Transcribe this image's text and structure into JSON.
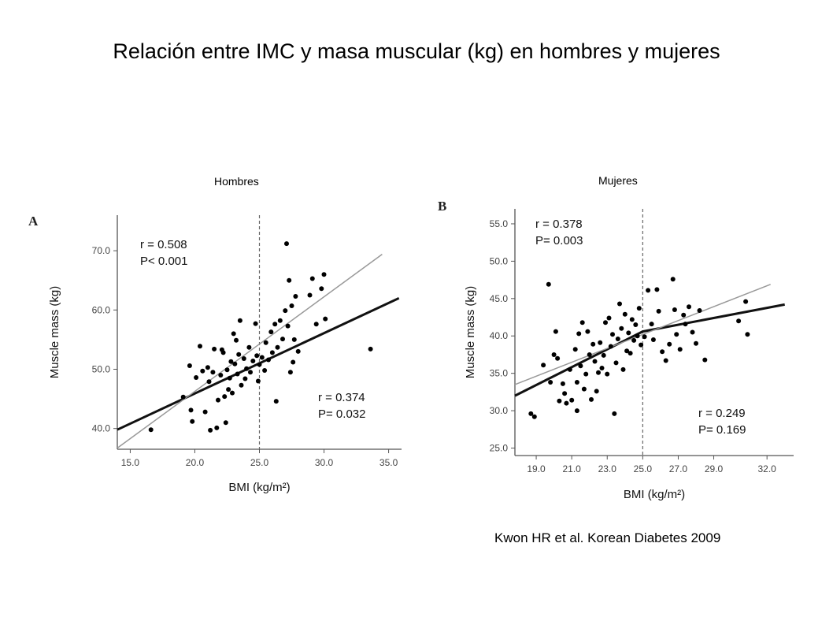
{
  "title": "Relación entre IMC y masa muscular (kg) en hombres y mujeres",
  "citation": "Kwon HR et al. Korean Diabetes 2009",
  "chart_data": [
    {
      "type": "scatter",
      "panel_name": "Hombres",
      "panel_letter": "A",
      "xlabel": "BMI (kg/m²)",
      "ylabel": "Muscle mass (kg)",
      "xlim": [
        14.0,
        36.0
      ],
      "ylim": [
        36.5,
        76.0
      ],
      "xticks": [
        15.0,
        20.0,
        25.0,
        30.0,
        35.0
      ],
      "yticks": [
        40.0,
        50.0,
        60.0,
        70.0
      ],
      "tick_labels_x": [
        "15.0",
        "20.0",
        "25.0",
        "30.0",
        "35.0"
      ],
      "tick_labels_y": [
        "40.0",
        "50.0",
        "60.0",
        "70.0"
      ],
      "cutoff_x": 25.0,
      "stats_top": {
        "r": "r = 0.508",
        "p": "P< 0.001"
      },
      "stats_bottom": {
        "r": "r = 0.374",
        "p": "P= 0.032"
      },
      "lines": [
        {
          "style": "thick",
          "x": [
            14.0,
            35.8
          ],
          "y": [
            39.8,
            62.0
          ]
        },
        {
          "style": "thin",
          "x": [
            14.0,
            34.5
          ],
          "y": [
            36.7,
            69.4
          ]
        }
      ],
      "points": [
        [
          16.6,
          39.8
        ],
        [
          19.1,
          45.3
        ],
        [
          19.6,
          50.6
        ],
        [
          19.7,
          43.1
        ],
        [
          19.8,
          41.2
        ],
        [
          20.1,
          48.6
        ],
        [
          20.4,
          53.9
        ],
        [
          20.6,
          49.7
        ],
        [
          20.8,
          42.8
        ],
        [
          21.0,
          50.3
        ],
        [
          21.1,
          47.9
        ],
        [
          21.2,
          39.7
        ],
        [
          21.4,
          49.5
        ],
        [
          21.5,
          53.4
        ],
        [
          21.7,
          40.1
        ],
        [
          21.8,
          44.8
        ],
        [
          22.0,
          49.0
        ],
        [
          22.1,
          53.3
        ],
        [
          22.2,
          52.8
        ],
        [
          22.3,
          45.4
        ],
        [
          22.4,
          41.0
        ],
        [
          22.5,
          49.9
        ],
        [
          22.6,
          46.6
        ],
        [
          22.7,
          48.5
        ],
        [
          22.8,
          51.3
        ],
        [
          22.9,
          46.0
        ],
        [
          23.0,
          56.0
        ],
        [
          23.1,
          50.9
        ],
        [
          23.2,
          54.9
        ],
        [
          23.3,
          49.2
        ],
        [
          23.4,
          52.5
        ],
        [
          23.5,
          58.2
        ],
        [
          23.6,
          47.3
        ],
        [
          23.8,
          51.8
        ],
        [
          23.9,
          48.4
        ],
        [
          24.0,
          50.1
        ],
        [
          24.2,
          53.7
        ],
        [
          24.3,
          49.5
        ],
        [
          24.5,
          51.4
        ],
        [
          24.7,
          57.7
        ],
        [
          24.8,
          52.3
        ],
        [
          24.9,
          48.0
        ],
        [
          25.0,
          50.8
        ],
        [
          25.2,
          52.0
        ],
        [
          25.4,
          49.8
        ],
        [
          25.5,
          54.5
        ],
        [
          25.7,
          51.6
        ],
        [
          25.9,
          56.3
        ],
        [
          26.0,
          52.8
        ],
        [
          26.2,
          57.6
        ],
        [
          26.3,
          44.6
        ],
        [
          26.4,
          53.7
        ],
        [
          26.6,
          58.2
        ],
        [
          26.8,
          55.1
        ],
        [
          27.0,
          59.9
        ],
        [
          27.1,
          71.2
        ],
        [
          27.2,
          57.3
        ],
        [
          27.3,
          65.0
        ],
        [
          27.4,
          49.5
        ],
        [
          27.5,
          60.7
        ],
        [
          27.6,
          51.2
        ],
        [
          27.7,
          55.0
        ],
        [
          27.8,
          62.3
        ],
        [
          28.0,
          53.0
        ],
        [
          28.9,
          62.5
        ],
        [
          29.1,
          65.3
        ],
        [
          29.4,
          57.6
        ],
        [
          29.8,
          63.6
        ],
        [
          30.0,
          66.0
        ],
        [
          30.1,
          58.5
        ],
        [
          33.6,
          53.4
        ]
      ]
    },
    {
      "type": "scatter",
      "panel_name": "Mujeres",
      "panel_letter": "B",
      "xlabel": "BMI (kg/m²)",
      "ylabel": "Muscle mass (kg)",
      "xlim": [
        17.8,
        33.5
      ],
      "ylim": [
        24.0,
        57.0
      ],
      "xticks": [
        19.0,
        21.0,
        23.0,
        25.0,
        27.0,
        29.0,
        32.0
      ],
      "yticks": [
        25.0,
        30.0,
        35.0,
        40.0,
        45.0,
        50.0,
        55.0
      ],
      "tick_labels_x": [
        "19.0",
        "21.0",
        "23.0",
        "25.0",
        "27.0",
        "29.0",
        "32.0"
      ],
      "tick_labels_y": [
        "25.0",
        "30.0",
        "35.0",
        "40.0",
        "45.0",
        "50.0",
        "55.0"
      ],
      "cutoff_x": 25.0,
      "stats_top": {
        "r": "r = 0.378",
        "p": "P= 0.003"
      },
      "stats_bottom": {
        "r": "r = 0.249",
        "p": "P= 0.169"
      },
      "lines": [
        {
          "style": "thick",
          "x": [
            17.8,
            25.0,
            33.0
          ],
          "y": [
            32.0,
            40.6,
            44.2
          ]
        },
        {
          "style": "thin",
          "x": [
            17.8,
            32.2
          ],
          "y": [
            33.5,
            46.9
          ]
        }
      ],
      "points": [
        [
          18.7,
          29.6
        ],
        [
          18.9,
          29.2
        ],
        [
          19.4,
          36.1
        ],
        [
          19.7,
          46.9
        ],
        [
          19.8,
          33.8
        ],
        [
          20.0,
          37.5
        ],
        [
          20.1,
          40.6
        ],
        [
          20.2,
          37.0
        ],
        [
          20.3,
          31.3
        ],
        [
          20.5,
          33.6
        ],
        [
          20.6,
          32.3
        ],
        [
          20.7,
          31.0
        ],
        [
          20.9,
          35.5
        ],
        [
          21.0,
          31.4
        ],
        [
          21.2,
          38.2
        ],
        [
          21.3,
          30.0
        ],
        [
          21.3,
          33.8
        ],
        [
          21.4,
          40.3
        ],
        [
          21.5,
          36.0
        ],
        [
          21.6,
          41.8
        ],
        [
          21.7,
          32.9
        ],
        [
          21.8,
          34.9
        ],
        [
          21.9,
          40.6
        ],
        [
          22.0,
          37.5
        ],
        [
          22.1,
          31.5
        ],
        [
          22.2,
          38.9
        ],
        [
          22.3,
          36.6
        ],
        [
          22.4,
          32.6
        ],
        [
          22.5,
          35.1
        ],
        [
          22.6,
          39.1
        ],
        [
          22.7,
          35.7
        ],
        [
          22.8,
          37.4
        ],
        [
          22.9,
          41.8
        ],
        [
          23.0,
          34.9
        ],
        [
          23.1,
          42.4
        ],
        [
          23.2,
          38.6
        ],
        [
          23.3,
          40.2
        ],
        [
          23.4,
          29.6
        ],
        [
          23.5,
          36.4
        ],
        [
          23.6,
          39.6
        ],
        [
          23.7,
          44.3
        ],
        [
          23.8,
          41.0
        ],
        [
          23.9,
          35.5
        ],
        [
          24.0,
          42.9
        ],
        [
          24.1,
          38.0
        ],
        [
          24.2,
          40.4
        ],
        [
          24.3,
          37.7
        ],
        [
          24.4,
          42.2
        ],
        [
          24.5,
          39.4
        ],
        [
          24.6,
          41.5
        ],
        [
          24.7,
          40.0
        ],
        [
          24.8,
          43.7
        ],
        [
          24.9,
          38.8
        ],
        [
          25.1,
          39.9
        ],
        [
          25.3,
          46.1
        ],
        [
          25.5,
          41.6
        ],
        [
          25.6,
          39.5
        ],
        [
          25.8,
          46.2
        ],
        [
          25.9,
          43.3
        ],
        [
          26.1,
          37.9
        ],
        [
          26.3,
          36.7
        ],
        [
          26.5,
          38.9
        ],
        [
          26.7,
          47.6
        ],
        [
          26.8,
          43.5
        ],
        [
          26.9,
          40.2
        ],
        [
          27.1,
          38.2
        ],
        [
          27.3,
          42.8
        ],
        [
          27.4,
          41.6
        ],
        [
          27.6,
          43.9
        ],
        [
          27.8,
          40.5
        ],
        [
          28.0,
          39.0
        ],
        [
          28.2,
          43.4
        ],
        [
          28.5,
          36.8
        ],
        [
          30.4,
          42.0
        ],
        [
          30.8,
          44.6
        ],
        [
          30.9,
          40.2
        ]
      ]
    }
  ]
}
